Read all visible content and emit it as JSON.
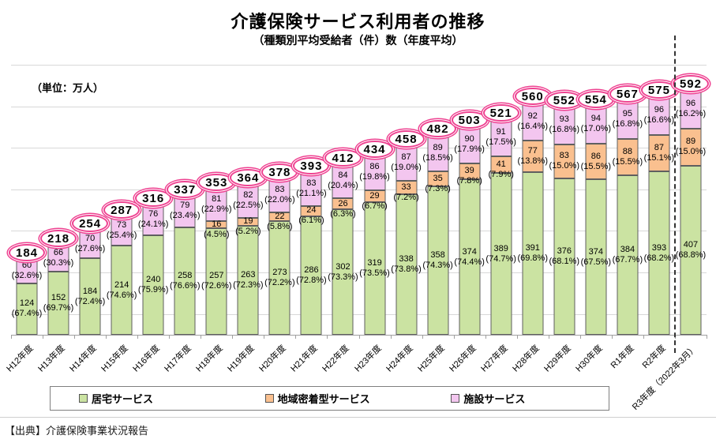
{
  "title": "介護保険サービス利用者の推移",
  "subtitle": "（種類別平均受給者（件）数（年度平均）",
  "source": "【出典】介護保険事業状況報告",
  "chart_data": {
    "type": "bar",
    "stacked": true,
    "unit_label": "（単位：万人）",
    "ylim": [
      0,
      650
    ],
    "gridlines": [
      50,
      150,
      250,
      350,
      450,
      550,
      650
    ],
    "grid": "on",
    "legend_position": "bottom",
    "oval_color": "#ee4090",
    "categories": [
      "H12年度",
      "H13年度",
      "H14年度",
      "H15年度",
      "H16年度",
      "H17年度",
      "H18年度",
      "H19年度",
      "H20年度",
      "H21年度",
      "H22年度",
      "H23年度",
      "H24年度",
      "H25年度",
      "H26年度",
      "H27年度",
      "H28年度",
      "H29年度",
      "H30年度",
      "R1年度",
      "R2年度",
      "R3年度（2022年3月）"
    ],
    "totals": [
      184,
      218,
      254,
      287,
      316,
      337,
      353,
      364,
      378,
      393,
      412,
      434,
      458,
      482,
      503,
      521,
      560,
      552,
      554,
      567,
      575,
      592
    ],
    "dashed_separator_before_index": 21,
    "series": [
      {
        "name": "居宅サービス",
        "color": "#cbe3a2",
        "values": [
          124,
          152,
          184,
          214,
          240,
          258,
          257,
          263,
          273,
          286,
          302,
          319,
          338,
          358,
          374,
          389,
          391,
          376,
          374,
          384,
          393,
          407
        ],
        "pcts": [
          "(67.4%)",
          "(69.7%)",
          "(72.4%)",
          "(74.6%)",
          "(75.9%)",
          "(76.6%)",
          "(72.6%)",
          "(72.3%)",
          "(72.2%)",
          "(72.8%)",
          "(73.3%)",
          "(73.5%)",
          "(73.8%)",
          "(74.3%)",
          "(74.4%)",
          "(74.7%)",
          "(69.8%)",
          "(68.1%)",
          "(67.5%)",
          "(67.7%)",
          "(68.2%)",
          "(68.8%)"
        ]
      },
      {
        "name": "地域密着型サービス",
        "color": "#fac08f",
        "values": [
          null,
          null,
          null,
          null,
          null,
          null,
          16,
          19,
          22,
          24,
          26,
          29,
          33,
          35,
          39,
          41,
          77,
          83,
          86,
          88,
          87,
          89
        ],
        "pcts": [
          null,
          null,
          null,
          null,
          null,
          null,
          "(4.5%)",
          "(5.2%)",
          "(5.8%)",
          "(6.1%)",
          "(6.3%)",
          "(6.7%)",
          "(7.2%)",
          "(7.3%)",
          "(7.8%)",
          "(7.9%)",
          "(13.8%)",
          "(15.0%)",
          "(15.5%)",
          "(15.5%)",
          "(15.1%)",
          "(15.0%)"
        ]
      },
      {
        "name": "施設サービス",
        "color": "#f3c6ef",
        "values": [
          60,
          66,
          70,
          73,
          76,
          79,
          81,
          82,
          83,
          83,
          84,
          86,
          87,
          89,
          90,
          91,
          92,
          93,
          94,
          95,
          96,
          96
        ],
        "pcts": [
          "(32.6%)",
          "(30.3%)",
          "(27.6%)",
          "(25.4%)",
          "(24.1%)",
          "(23.4%)",
          "(22.9%)",
          "(22.5%)",
          "(22.0%)",
          "(21.1%)",
          "(20.4%)",
          "(19.8%)",
          "(19.0%)",
          "(18.5%)",
          "(17.9%)",
          "(17.5%)",
          "(16.4%)",
          "(16.8%)",
          "(17.0%)",
          "(16.8%)",
          "(16.6%)",
          "(16.2%)"
        ]
      }
    ]
  }
}
